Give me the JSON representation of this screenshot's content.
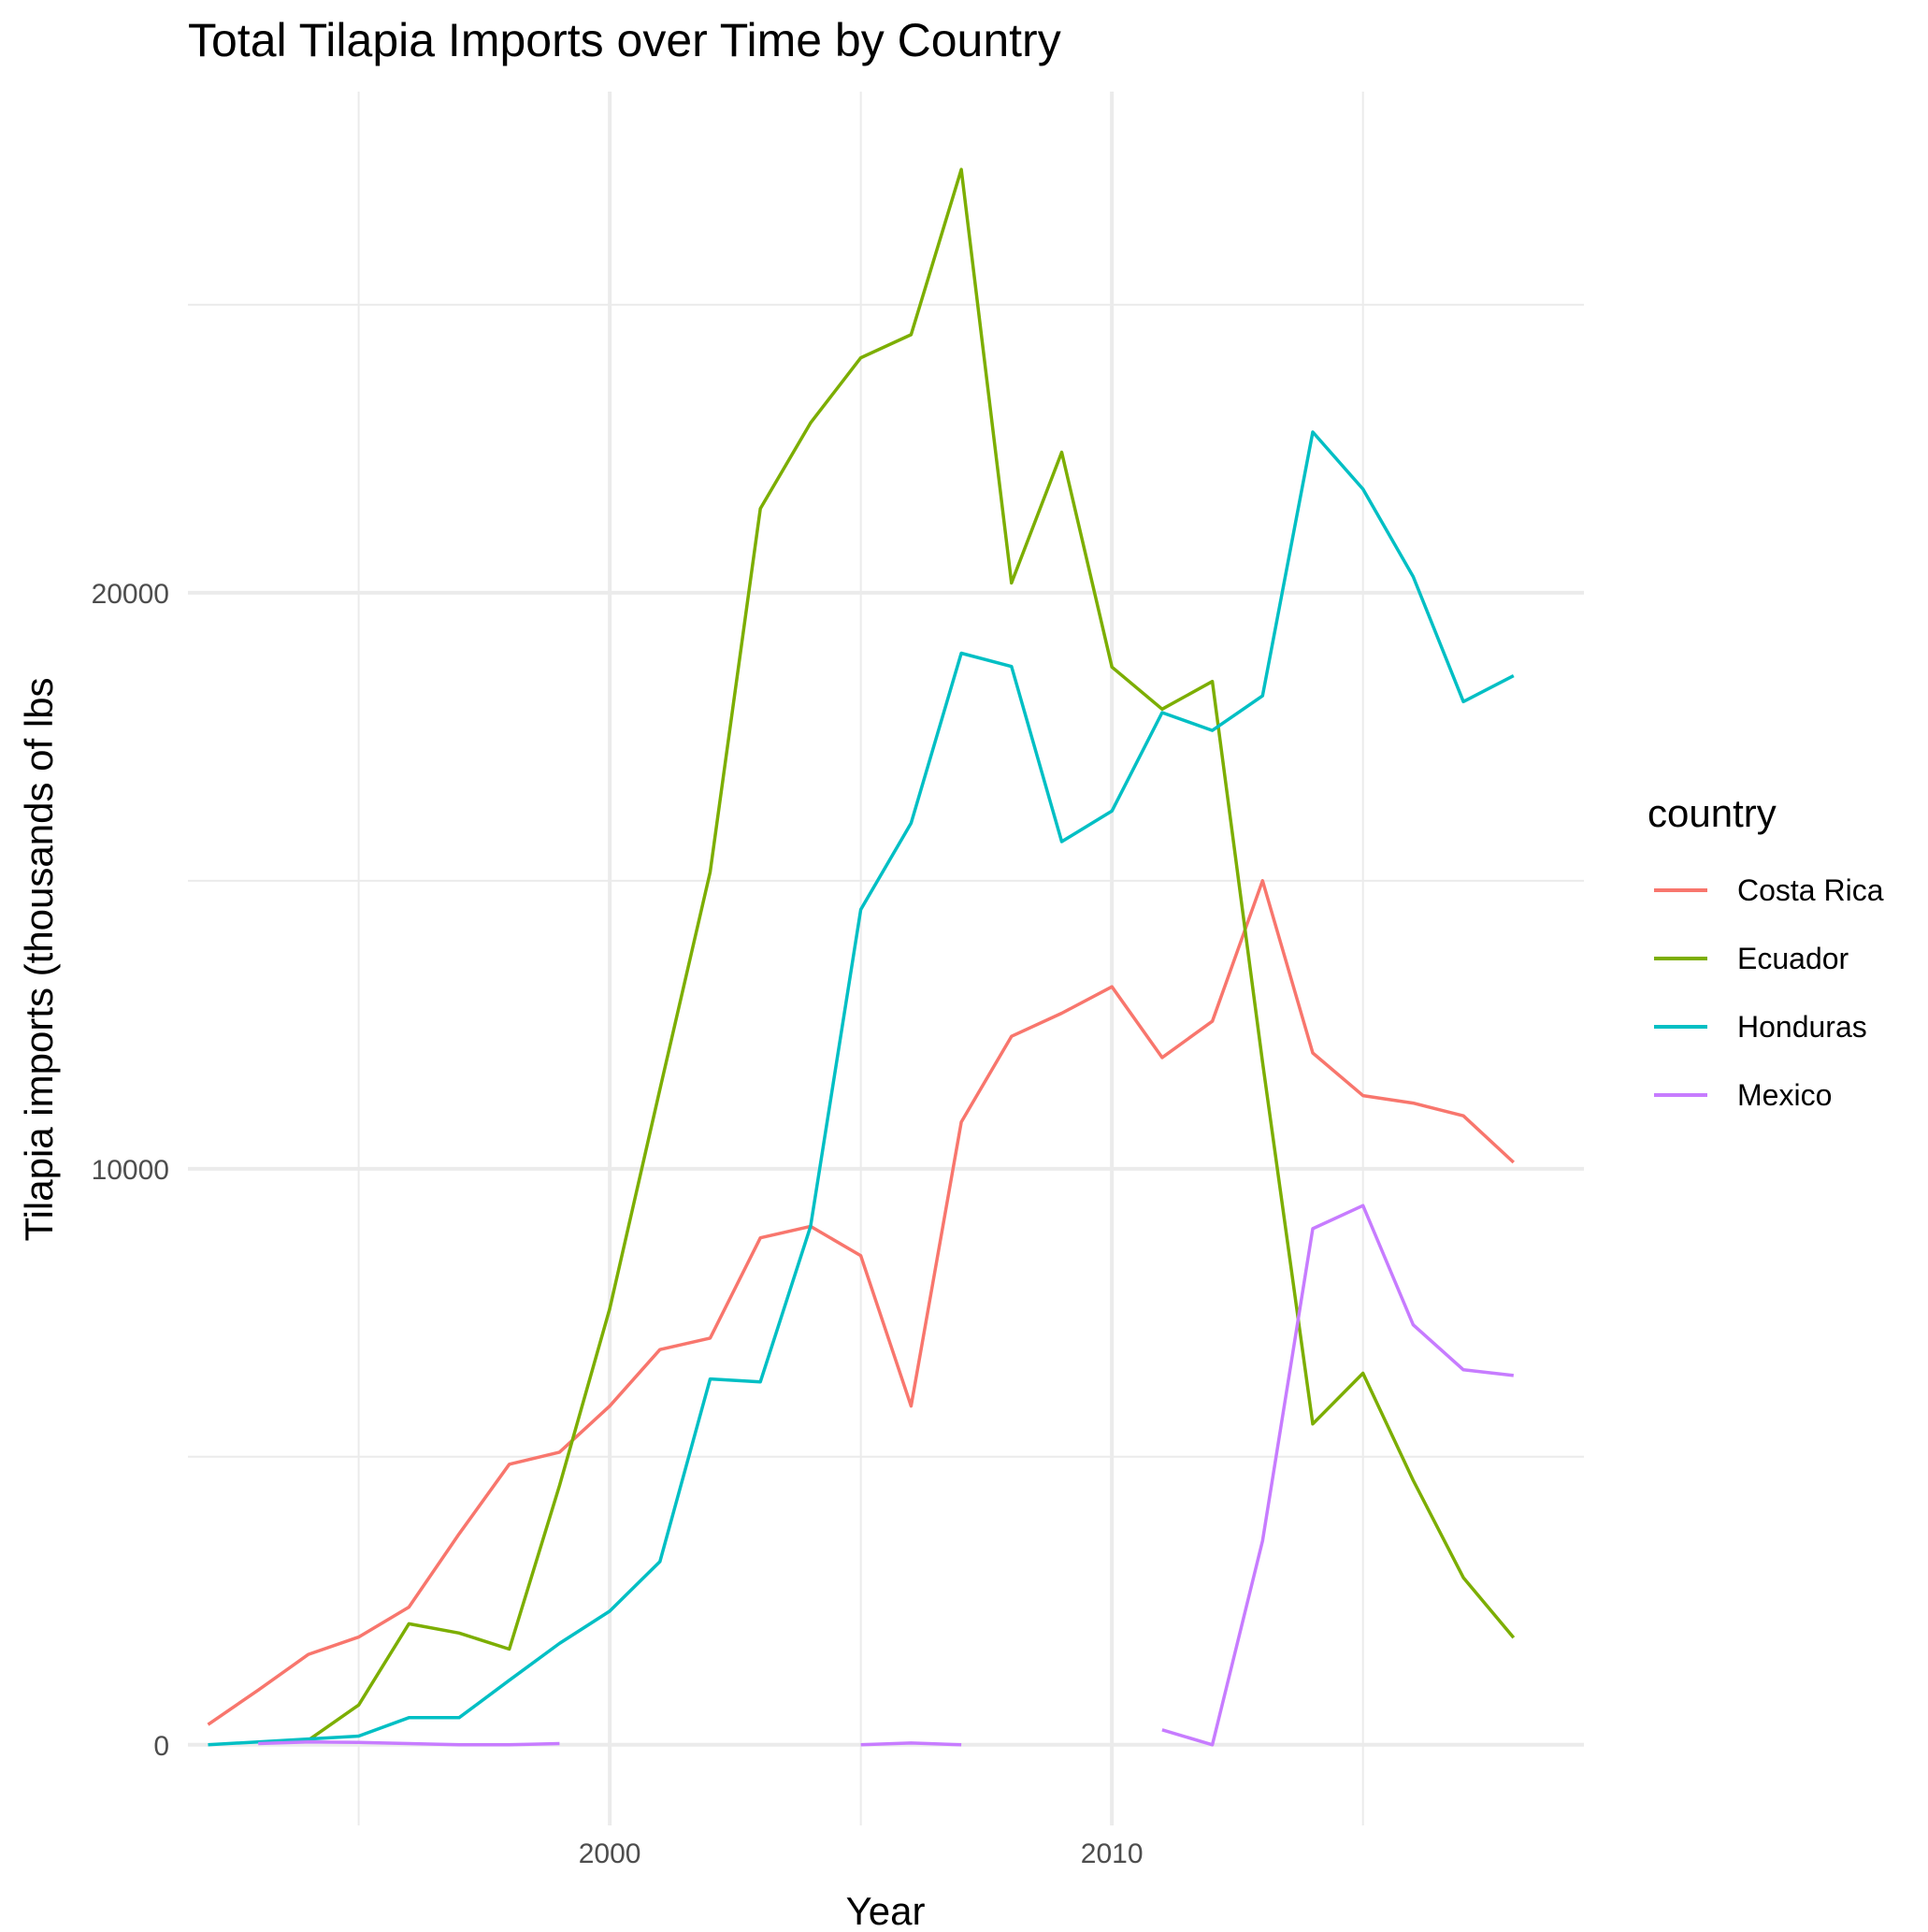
{
  "chart_data": {
    "type": "line",
    "title": "Total Tilapia Imports over Time by Country",
    "xlabel": "Year",
    "ylabel": "Tilapia imports (thousands of lbs",
    "xlim": [
      1991.6,
      2019.4
    ],
    "ylim": [
      -1400,
      28700
    ],
    "x_major_ticks": [
      2000,
      2010
    ],
    "x_minor_ticks": [
      1995,
      2005,
      2015
    ],
    "y_major_ticks": [
      0,
      10000,
      20000
    ],
    "y_minor_ticks": [
      5000,
      15000,
      25000
    ],
    "x_tick_labels": [
      "2000",
      "2010"
    ],
    "y_tick_labels": [
      "0",
      "10000",
      "20000"
    ],
    "grid": true,
    "legend": {
      "title": "country",
      "position": "right"
    },
    "series": [
      {
        "name": "Costa Rica",
        "color": "#F8766D",
        "x": [
          1992,
          1993,
          1994,
          1995,
          1996,
          1997,
          1998,
          1999,
          2000,
          2001,
          2002,
          2003,
          2004,
          2005,
          2006,
          2007,
          2008,
          2009,
          2010,
          2011,
          2012,
          2013,
          2014,
          2015,
          2016,
          2017,
          2018
        ],
        "y": [
          350,
          950,
          1570,
          1870,
          2390,
          3660,
          4870,
          5080,
          5880,
          6860,
          7060,
          8800,
          9000,
          8490,
          5880,
          10810,
          12300,
          12700,
          13160,
          11930,
          12560,
          15000,
          12010,
          11270,
          11140,
          10920,
          10110
        ]
      },
      {
        "name": "Ecuador",
        "color": "#7CAE00",
        "x": [
          1994,
          1995,
          1996,
          1997,
          1998,
          1999,
          2000,
          2001,
          2002,
          2003,
          2004,
          2005,
          2006,
          2007,
          2008,
          2009,
          2010,
          2011,
          2012,
          2013,
          2014,
          2015,
          2016,
          2017,
          2018
        ],
        "y": [
          80,
          690,
          2100,
          1940,
          1660,
          4500,
          7570,
          11380,
          15150,
          21460,
          22950,
          24080,
          24480,
          27350,
          20170,
          22440,
          18710,
          17980,
          18460,
          11850,
          5570,
          6450,
          4590,
          2900,
          1860
        ]
      },
      {
        "name": "Honduras",
        "color": "#00BFC4",
        "x": [
          1992,
          1993,
          1994,
          1995,
          1996,
          1997,
          1998,
          1999,
          2000,
          2001,
          2002,
          2003,
          2004,
          2005,
          2006,
          2007,
          2008,
          2009,
          2010,
          2011,
          2012,
          2013,
          2014,
          2015,
          2016,
          2017,
          2018
        ],
        "y": [
          0,
          50,
          100,
          150,
          470,
          470,
          1120,
          1760,
          2320,
          3180,
          6350,
          6300,
          9000,
          14500,
          16000,
          18950,
          18720,
          15680,
          16210,
          17920,
          17610,
          18210,
          22790,
          21800,
          20280,
          18110,
          18560
        ]
      },
      {
        "name": "Mexico",
        "color": "#C77CFF",
        "segments": [
          {
            "x": [
              1993,
              1994,
              1995,
              1996,
              1997,
              1998,
              1999
            ],
            "y": [
              20,
              50,
              40,
              20,
              0,
              0,
              20
            ]
          },
          {
            "x": [
              2005,
              2006,
              2007
            ],
            "y": [
              0,
              30,
              0
            ]
          },
          {
            "x": [
              2011,
              2012,
              2013,
              2014,
              2015,
              2016,
              2017,
              2018
            ],
            "y": [
              260,
              0,
              3540,
              8960,
              9360,
              7290,
              6510,
              6410
            ]
          }
        ]
      }
    ]
  }
}
